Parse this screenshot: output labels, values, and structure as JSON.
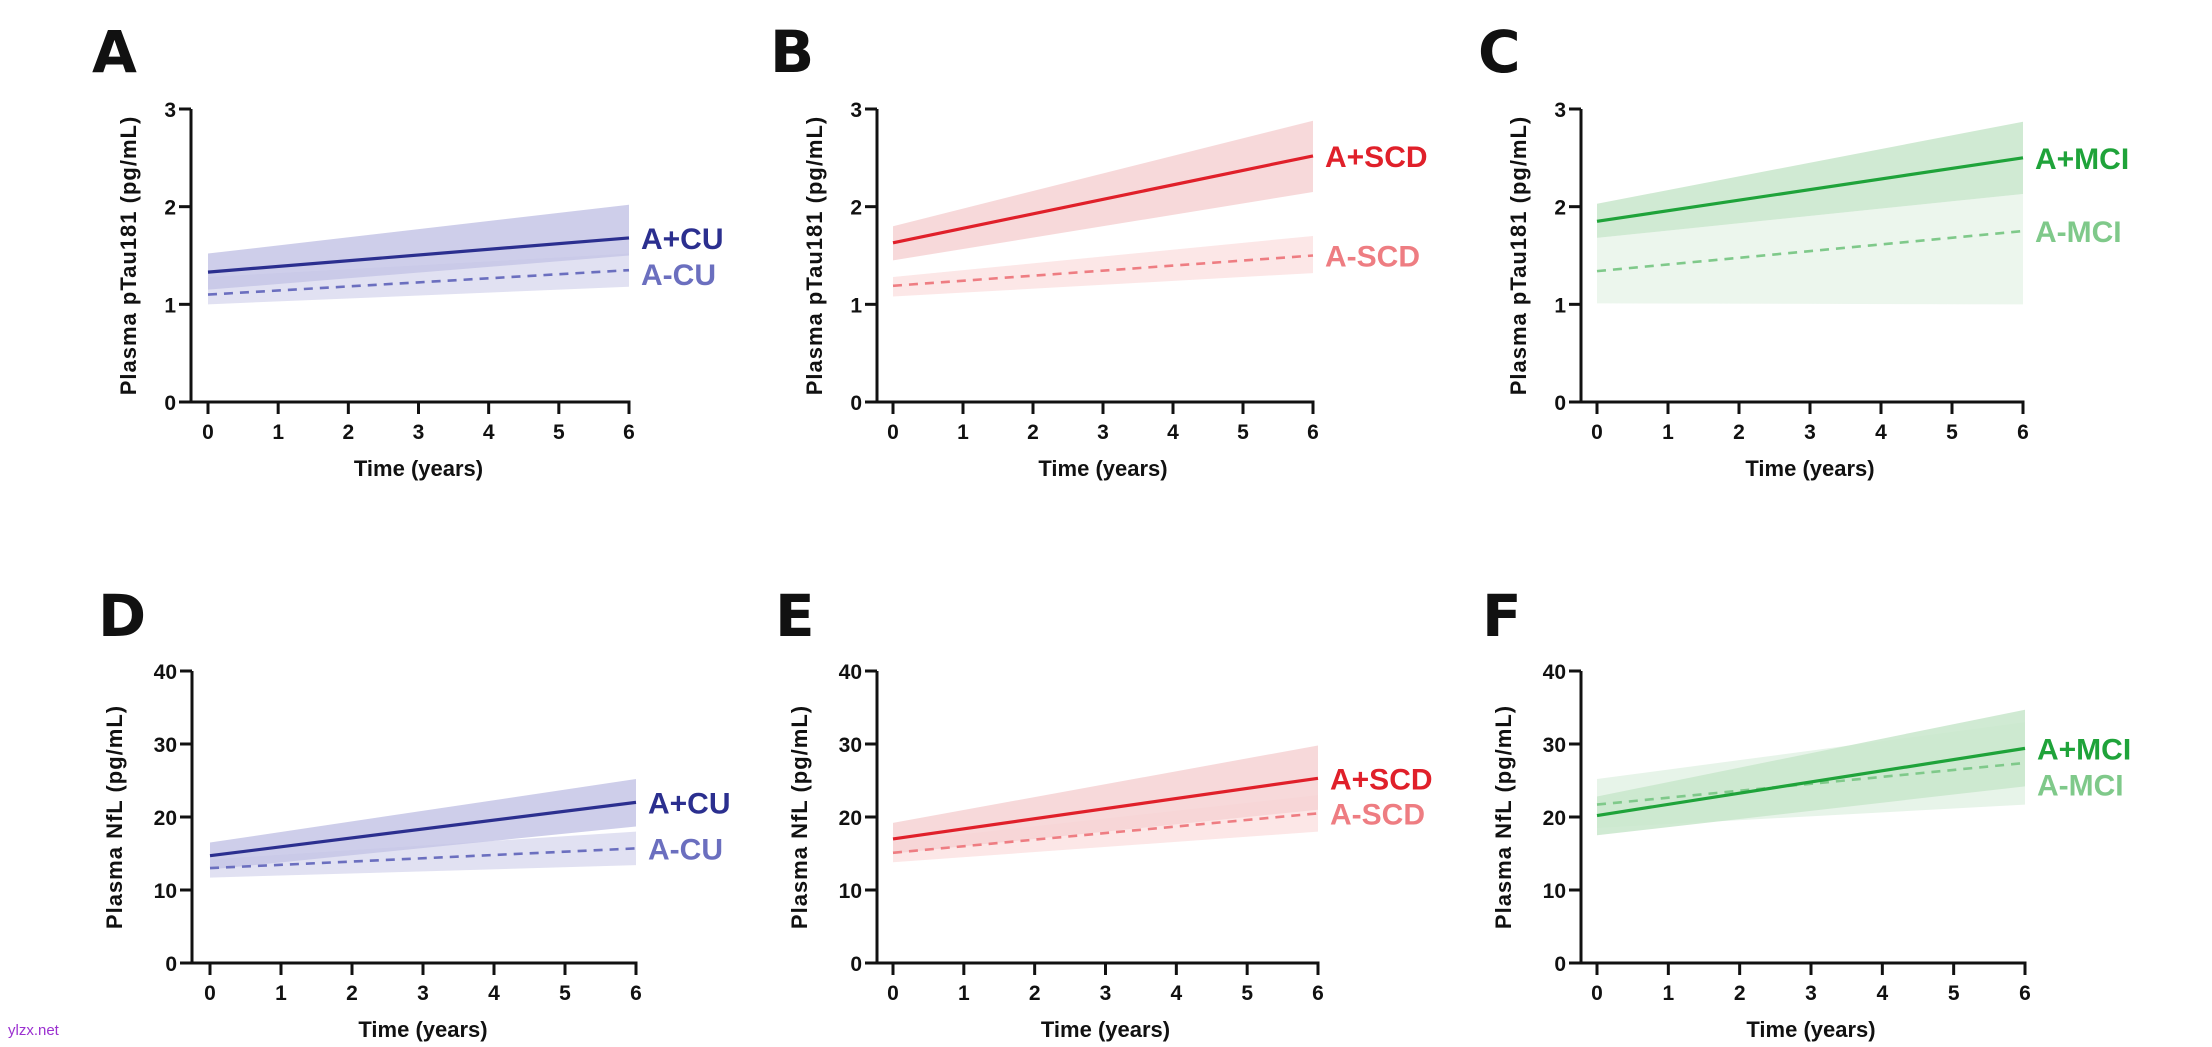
{
  "watermark": "ylzx.net",
  "chart_data": [
    {
      "panel": "A",
      "type": "line",
      "xlabel": "Time  (years)",
      "ylabel": "Plasma pTau181 (pg/mL)",
      "xlim": [
        0,
        6
      ],
      "ylim": [
        0,
        3
      ],
      "xticks": [
        "0",
        "1",
        "2",
        "3",
        "4",
        "5",
        "6"
      ],
      "yticks": [
        "0",
        "1",
        "2",
        "3"
      ],
      "grid": false,
      "series": [
        {
          "name": "A-CU",
          "style": "dashed",
          "color": "#6b6fbf",
          "band_color": "#dcdcf0",
          "x": [
            0,
            6
          ],
          "y": [
            1.1,
            1.35
          ],
          "ci_lower": [
            1.0,
            1.18
          ],
          "ci_upper": [
            1.28,
            1.52
          ]
        },
        {
          "name": "A+CU",
          "style": "solid",
          "color": "#2b2f8f",
          "band_color": "#c5c6e6",
          "x": [
            0,
            6
          ],
          "y": [
            1.33,
            1.68
          ],
          "ci_lower": [
            1.15,
            1.5
          ],
          "ci_upper": [
            1.52,
            2.02
          ]
        }
      ]
    },
    {
      "panel": "B",
      "type": "line",
      "xlabel": "Time  (years)",
      "ylabel": "Plasma pTau181 (pg/mL)",
      "xlim": [
        0,
        6
      ],
      "ylim": [
        0,
        3
      ],
      "xticks": [
        "0",
        "1",
        "2",
        "3",
        "4",
        "5",
        "6"
      ],
      "yticks": [
        "0",
        "1",
        "2",
        "3"
      ],
      "grid": false,
      "series": [
        {
          "name": "A-SCD",
          "style": "dashed",
          "color": "#ee7d82",
          "band_color": "#fbe3e3",
          "x": [
            0,
            6
          ],
          "y": [
            1.19,
            1.5
          ],
          "ci_lower": [
            1.08,
            1.32
          ],
          "ci_upper": [
            1.28,
            1.7
          ]
        },
        {
          "name": "A+SCD",
          "style": "solid",
          "color": "#e0202a",
          "band_color": "#f6d2d3",
          "x": [
            0,
            6
          ],
          "y": [
            1.63,
            2.52
          ],
          "ci_lower": [
            1.45,
            2.15
          ],
          "ci_upper": [
            1.8,
            2.88
          ]
        }
      ]
    },
    {
      "panel": "C",
      "type": "line",
      "xlabel": "Time  (years)",
      "ylabel": "Plasma pTau181 (pg/mL)",
      "xlim": [
        0,
        6
      ],
      "ylim": [
        0,
        3
      ],
      "xticks": [
        "0",
        "1",
        "2",
        "3",
        "4",
        "5",
        "6"
      ],
      "yticks": [
        "0",
        "1",
        "2",
        "3"
      ],
      "grid": false,
      "series": [
        {
          "name": "A-MCI",
          "style": "dashed",
          "color": "#7fc98a",
          "band_color": "#e9f5ea",
          "x": [
            0,
            6
          ],
          "y": [
            1.34,
            1.75
          ],
          "ci_lower": [
            1.01,
            1.0
          ],
          "ci_upper": [
            1.68,
            2.13
          ]
        },
        {
          "name": "A+MCI",
          "style": "solid",
          "color": "#1fa33a",
          "band_color": "#c8e6cb",
          "x": [
            0,
            6
          ],
          "y": [
            1.85,
            2.5
          ],
          "ci_lower": [
            1.68,
            2.13
          ],
          "ci_upper": [
            2.03,
            2.87
          ]
        }
      ]
    },
    {
      "panel": "D",
      "type": "line",
      "xlabel": "Time  (years)",
      "ylabel": "Plasma NfL  (pg/mL)",
      "xlim": [
        0,
        6
      ],
      "ylim": [
        0,
        40
      ],
      "xticks": [
        "0",
        "1",
        "2",
        "3",
        "4",
        "5",
        "6"
      ],
      "yticks": [
        "0",
        "10",
        "20",
        "30",
        "40"
      ],
      "grid": false,
      "series": [
        {
          "name": "A-CU",
          "style": "dashed",
          "color": "#6b6fbf",
          "band_color": "#dcdcf0",
          "x": [
            0,
            6
          ],
          "y": [
            13.0,
            15.7
          ],
          "ci_lower": [
            11.7,
            13.4
          ],
          "ci_upper": [
            14.2,
            18.0
          ]
        },
        {
          "name": "A+CU",
          "style": "solid",
          "color": "#2b2f8f",
          "band_color": "#c5c6e6",
          "x": [
            0,
            6
          ],
          "y": [
            14.7,
            22.0
          ],
          "ci_lower": [
            12.8,
            18.7
          ],
          "ci_upper": [
            16.5,
            25.2
          ]
        }
      ]
    },
    {
      "panel": "E",
      "type": "line",
      "xlabel": "Time  (years)",
      "ylabel": "Plasma NfL  (pg/mL)",
      "xlim": [
        0,
        6
      ],
      "ylim": [
        0,
        40
      ],
      "xticks": [
        "0",
        "1",
        "2",
        "3",
        "4",
        "5",
        "6"
      ],
      "yticks": [
        "0",
        "10",
        "20",
        "30",
        "40"
      ],
      "grid": false,
      "series": [
        {
          "name": "A-SCD",
          "style": "dashed",
          "color": "#ee7d82",
          "band_color": "#fbe3e3",
          "x": [
            0,
            6
          ],
          "y": [
            15.1,
            20.5
          ],
          "ci_lower": [
            13.8,
            18.0
          ],
          "ci_upper": [
            16.6,
            23.0
          ]
        },
        {
          "name": "A+SCD",
          "style": "solid",
          "color": "#e0202a",
          "band_color": "#f6d2d3",
          "x": [
            0,
            6
          ],
          "y": [
            17.0,
            25.3
          ],
          "ci_lower": [
            15.0,
            21.0
          ],
          "ci_upper": [
            19.2,
            29.8
          ]
        }
      ]
    },
    {
      "panel": "F",
      "type": "line",
      "xlabel": "Time  (years)",
      "ylabel": "Plasma NfL  (pg/mL)",
      "xlim": [
        0,
        6
      ],
      "ylim": [
        0,
        40
      ],
      "xticks": [
        "0",
        "1",
        "2",
        "3",
        "4",
        "5",
        "6"
      ],
      "yticks": [
        "0",
        "10",
        "20",
        "30",
        "40"
      ],
      "grid": false,
      "series": [
        {
          "name": "A-MCI",
          "style": "dashed",
          "color": "#7fc98a",
          "band_color": "#e3f2e5",
          "x": [
            0,
            6
          ],
          "y": [
            21.7,
            27.4
          ],
          "ci_lower": [
            18.5,
            21.7
          ],
          "ci_upper": [
            25.2,
            33.0
          ]
        },
        {
          "name": "A+MCI",
          "style": "solid",
          "color": "#1fa33a",
          "band_color": "#c8e6cb",
          "x": [
            0,
            6
          ],
          "y": [
            20.2,
            29.4
          ],
          "ci_lower": [
            17.5,
            24.2
          ],
          "ci_upper": [
            22.8,
            34.7
          ]
        }
      ]
    }
  ]
}
